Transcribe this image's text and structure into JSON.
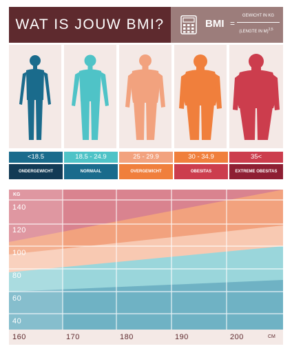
{
  "header": {
    "title": "WAT IS JOUW BMI?",
    "formula_label": "BMI",
    "formula_eq": "=",
    "numerator": "GEWICHT IN KG",
    "denominator": "(LENGTE IN M)",
    "exponent": "2,5"
  },
  "categories": [
    {
      "range": "<18.5",
      "name": "ONDERGEWICHT",
      "color": "#1a6b8c"
    },
    {
      "range": "18.5 - 24.9",
      "name": "NORMAAL",
      "color": "#4fc3c7"
    },
    {
      "range": "25 - 29.9",
      "name": "OVERGEWICHT",
      "color": "#f2a27e"
    },
    {
      "range": "30 - 34.9",
      "name": "OBESITAS",
      "color": "#f07f3c"
    },
    {
      "range": "35<",
      "name": "EXTREME OBESITAS",
      "color": "#cc3d4d"
    }
  ],
  "chart": {
    "weight_unit": "KG",
    "height_unit": "CM",
    "y_ticks": [
      "140",
      "120",
      "100",
      "80",
      "60",
      "40"
    ],
    "x_ticks": [
      "160",
      "170",
      "180",
      "190",
      "200"
    ]
  }
}
